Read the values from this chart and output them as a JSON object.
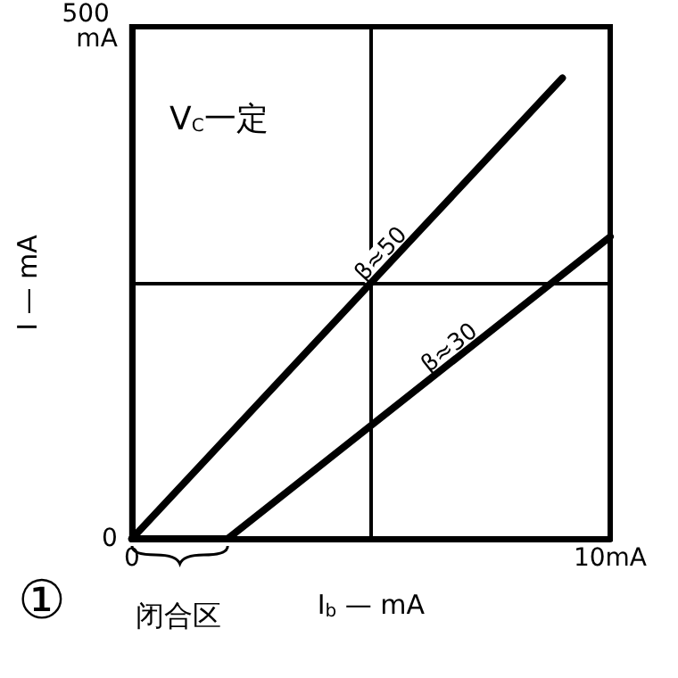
{
  "chart_data": {
    "type": "line",
    "xlabel": "I$_{b}$ — mA",
    "ylabel": "I — mA",
    "xlim": [
      0,
      10
    ],
    "xticks": [
      0,
      {
        "value": 5,
        "label": null
      },
      {
        "value": 10,
        "label": "10mA"
      }
    ],
    "ylim": [
      0,
      500
    ],
    "yticks": [
      0,
      {
        "value": 250,
        "label": null
      },
      {
        "value": 500,
        "label": "500 mA"
      }
    ],
    "series": [
      {
        "name": "β≈50",
        "color": "#000000",
        "x": [
          0,
          9
        ],
        "values": [
          0,
          450
        ]
      },
      {
        "name": "β≈30",
        "color": "#000000",
        "x": [
          0,
          2,
          10
        ],
        "values": [
          0,
          0,
          295
        ]
      }
    ],
    "annotations": [
      "V$_{C}$一定",
      "闭合区",
      "①"
    ],
    "grid": true,
    "legend": false,
    "marker": "none",
    "line_style": "solid"
  }
}
